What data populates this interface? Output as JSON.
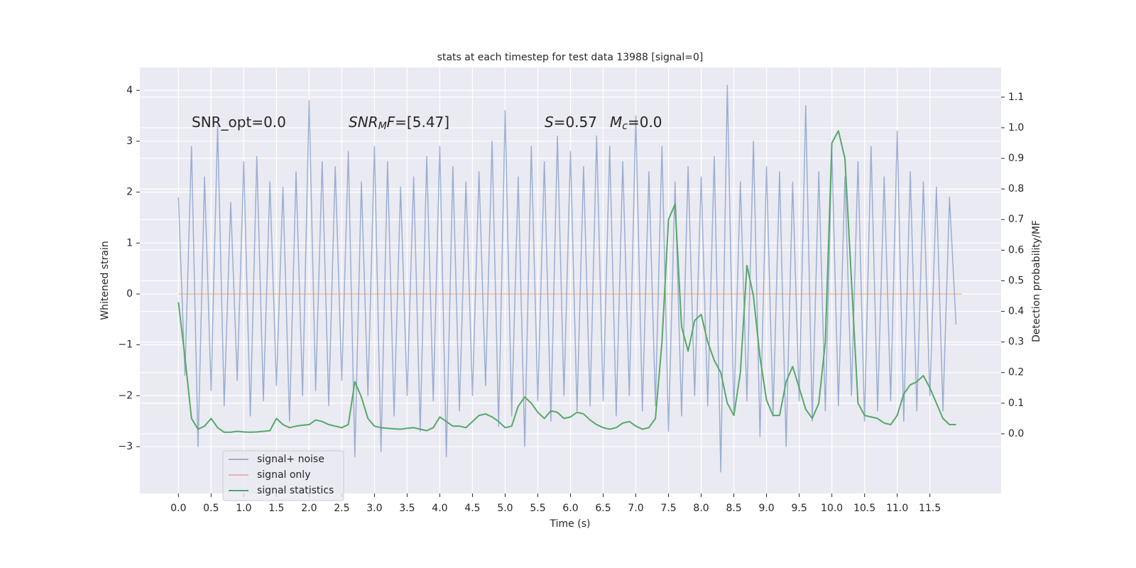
{
  "chart_data": {
    "type": "line",
    "title": "stats at each timestep for test data 13988 [signal=0]",
    "xlabel": "Time (s)",
    "ylabel": "Whitened strain",
    "y2label": "Detection probability/MF",
    "annotations": [
      {
        "parts": [
          {
            "text": "SNR_opt=0.0"
          }
        ]
      },
      {
        "parts": [
          {
            "text": "SNR",
            "style": "italic"
          },
          {
            "text": "M",
            "style": "italic-sub"
          },
          {
            "text": "F",
            "style": "italic"
          },
          {
            "text": "=[5.47]"
          }
        ]
      },
      {
        "parts": [
          {
            "text": "S",
            "style": "italic"
          },
          {
            "text": "=0.57"
          }
        ]
      },
      {
        "parts": [
          {
            "text": "M",
            "style": "italic"
          },
          {
            "text": "c",
            "style": "italic-sub"
          },
          {
            "text": "=0.0"
          }
        ]
      }
    ],
    "xlim": [
      -0.59,
      12.59
    ],
    "ylim": [
      -3.92,
      4.45
    ],
    "y2lim": [
      -0.195,
      1.197
    ],
    "xticks": [
      {
        "value": 0,
        "label": "0.0"
      },
      0.5,
      {
        "value": 1,
        "label": "1.0"
      },
      1.5,
      {
        "value": 2,
        "label": "2.0"
      },
      2.5,
      {
        "value": 3,
        "label": "3.0"
      },
      3.5,
      {
        "value": 4,
        "label": "4.0"
      },
      4.5,
      {
        "value": 5,
        "label": "5.0"
      },
      5.5,
      {
        "value": 6,
        "label": "6.0"
      },
      6.5,
      {
        "value": 7,
        "label": "7.0"
      },
      7.5,
      {
        "value": 8,
        "label": "8.0"
      },
      8.5,
      {
        "value": 9,
        "label": "9.0"
      },
      9.5,
      {
        "value": 10,
        "label": "10.0"
      },
      10.5,
      {
        "value": 11,
        "label": "11.0"
      },
      11.5
    ],
    "yticks": [
      {
        "value": -3,
        "label": "−3"
      },
      {
        "value": -2,
        "label": "−2"
      },
      {
        "value": -1,
        "label": "−1"
      },
      0,
      1,
      2,
      3,
      4
    ],
    "y2ticks": [
      {
        "value": 0,
        "label": "0.0"
      },
      0.1,
      0.2,
      0.3,
      0.4,
      0.5,
      0.6,
      0.7,
      0.8,
      0.9,
      {
        "value": 1,
        "label": "1.0"
      },
      1.1
    ],
    "grid": true,
    "legend": "lower left",
    "series": [
      {
        "name": "signal+ noise",
        "color": "#4c72b0",
        "alpha": 0.5,
        "x": [
          0,
          0.1,
          0.2,
          0.3,
          0.4,
          0.5,
          0.6,
          0.7,
          0.8,
          0.9,
          1,
          1.1,
          1.2,
          1.3,
          1.4,
          1.5,
          1.6,
          1.7,
          1.8,
          1.9,
          2,
          2.1,
          2.2,
          2.3,
          2.4,
          2.5,
          2.6,
          2.7,
          2.8,
          2.9,
          3,
          3.1,
          3.2,
          3.3,
          3.4,
          3.5,
          3.6,
          3.7,
          3.8,
          3.9,
          4,
          4.1,
          4.2,
          4.3,
          4.4,
          4.5,
          4.6,
          4.7,
          4.8,
          4.9,
          5,
          5.1,
          5.2,
          5.3,
          5.4,
          5.5,
          5.6,
          5.7,
          5.8,
          5.9,
          6,
          6.1,
          6.2,
          6.3,
          6.4,
          6.5,
          6.6,
          6.7,
          6.8,
          6.9,
          7,
          7.1,
          7.2,
          7.3,
          7.4,
          7.5,
          7.6,
          7.7,
          7.8,
          7.9,
          8,
          8.1,
          8.2,
          8.3,
          8.4,
          8.5,
          8.6,
          8.7,
          8.8,
          8.9,
          9,
          9.1,
          9.2,
          9.3,
          9.4,
          9.5,
          9.6,
          9.7,
          9.8,
          9.9,
          10,
          10.1,
          10.2,
          10.3,
          10.4,
          10.5,
          10.6,
          10.7,
          10.8,
          10.9,
          11,
          11.1,
          11.2,
          11.3,
          11.4,
          11.5,
          11.6,
          11.7,
          11.8,
          11.9
        ],
        "values": [
          1.9,
          -1.6,
          2.9,
          -3.0,
          2.3,
          -1.9,
          3.3,
          -2.2,
          1.8,
          -1.7,
          2.6,
          -2.4,
          2.7,
          -2.1,
          2.2,
          -1.8,
          2.1,
          -2.5,
          2.4,
          -2.0,
          3.8,
          -1.9,
          2.6,
          -2.2,
          2.5,
          -1.7,
          2.8,
          -3.2,
          2.2,
          -2.0,
          2.9,
          -3.1,
          2.6,
          -2.4,
          2.1,
          -2.0,
          2.3,
          -2.7,
          2.7,
          -2.1,
          2.9,
          -3.2,
          2.5,
          -2.3,
          2.2,
          -2.0,
          2.4,
          -1.8,
          3.0,
          -2.6,
          3.6,
          -2.4,
          2.3,
          -3.0,
          2.9,
          -2.1,
          2.6,
          -2.5,
          3.1,
          -2.0,
          2.8,
          -2.3,
          2.5,
          -2.2,
          3.1,
          -2.1,
          2.9,
          -2.4,
          2.6,
          -2.0,
          3.5,
          -2.3,
          2.4,
          -2.2,
          2.9,
          -2.7,
          2.2,
          -2.4,
          2.5,
          -2.0,
          2.3,
          -2.2,
          2.7,
          -3.5,
          4.1,
          -2.3,
          2.2,
          -2.1,
          3.0,
          -2.8,
          2.5,
          -2.4,
          2.4,
          -3.0,
          2.2,
          -2.1,
          3.7,
          -2.5,
          2.4,
          -2.3,
          2.8,
          -2.2,
          2.3,
          -2.0,
          2.6,
          -2.5,
          2.9,
          -2.3,
          2.3,
          -2.1,
          3.2,
          -2.5,
          2.4,
          -2.3,
          2.2,
          -2.0,
          2.1,
          -2.3,
          1.9,
          -0.6
        ]
      },
      {
        "name": "signal only",
        "color": "#dd8452",
        "alpha": 0.5,
        "x": [
          0,
          11.99
        ],
        "values": [
          0,
          0
        ]
      },
      {
        "name": "signal statistics",
        "color": "#55a868",
        "alpha": 1,
        "axis": "y2",
        "x": [
          0,
          0.1,
          0.2,
          0.3,
          0.4,
          0.5,
          0.6,
          0.7,
          0.8,
          0.9,
          1,
          1.1,
          1.2,
          1.3,
          1.4,
          1.5,
          1.6,
          1.7,
          1.8,
          1.9,
          2,
          2.1,
          2.2,
          2.3,
          2.4,
          2.5,
          2.6,
          2.7,
          2.8,
          2.9,
          3,
          3.1,
          3.2,
          3.3,
          3.4,
          3.5,
          3.6,
          3.7,
          3.8,
          3.9,
          4,
          4.1,
          4.2,
          4.3,
          4.4,
          4.5,
          4.6,
          4.7,
          4.8,
          4.9,
          5,
          5.1,
          5.2,
          5.3,
          5.4,
          5.5,
          5.6,
          5.7,
          5.8,
          5.9,
          6,
          6.1,
          6.2,
          6.3,
          6.4,
          6.5,
          6.6,
          6.7,
          6.8,
          6.9,
          7,
          7.1,
          7.2,
          7.3,
          7.4,
          7.5,
          7.6,
          7.7,
          7.8,
          7.9,
          8,
          8.1,
          8.2,
          8.3,
          8.4,
          8.5,
          8.6,
          8.7,
          8.8,
          8.9,
          9,
          9.1,
          9.2,
          9.3,
          9.4,
          9.5,
          9.6,
          9.7,
          9.8,
          9.9,
          10,
          10.1,
          10.2,
          10.3,
          10.4,
          10.5,
          10.6,
          10.7,
          10.8,
          10.9,
          11,
          11.1,
          11.2,
          11.3,
          11.4,
          11.5,
          11.6,
          11.7,
          11.8,
          11.9
        ],
        "values": [
          0.43,
          0.25,
          0.05,
          0.015,
          0.025,
          0.05,
          0.02,
          0.005,
          0.005,
          0.008,
          0.006,
          0.005,
          0.006,
          0.008,
          0.01,
          0.05,
          0.03,
          0.02,
          0.025,
          0.028,
          0.03,
          0.045,
          0.04,
          0.03,
          0.025,
          0.02,
          0.03,
          0.17,
          0.12,
          0.05,
          0.025,
          0.02,
          0.018,
          0.016,
          0.015,
          0.018,
          0.02,
          0.015,
          0.01,
          0.02,
          0.055,
          0.04,
          0.025,
          0.025,
          0.02,
          0.04,
          0.06,
          0.065,
          0.055,
          0.04,
          0.02,
          0.025,
          0.09,
          0.12,
          0.1,
          0.07,
          0.05,
          0.075,
          0.07,
          0.05,
          0.055,
          0.07,
          0.065,
          0.045,
          0.03,
          0.02,
          0.015,
          0.02,
          0.035,
          0.04,
          0.025,
          0.015,
          0.02,
          0.05,
          0.3,
          0.7,
          0.75,
          0.35,
          0.27,
          0.37,
          0.39,
          0.3,
          0.24,
          0.2,
          0.1,
          0.06,
          0.2,
          0.55,
          0.45,
          0.25,
          0.11,
          0.06,
          0.06,
          0.17,
          0.22,
          0.15,
          0.08,
          0.05,
          0.1,
          0.3,
          0.95,
          0.99,
          0.9,
          0.5,
          0.1,
          0.06,
          0.055,
          0.05,
          0.035,
          0.03,
          0.06,
          0.13,
          0.16,
          0.17,
          0.19,
          0.15,
          0.1,
          0.05,
          0.03,
          0.03
        ]
      }
    ]
  }
}
